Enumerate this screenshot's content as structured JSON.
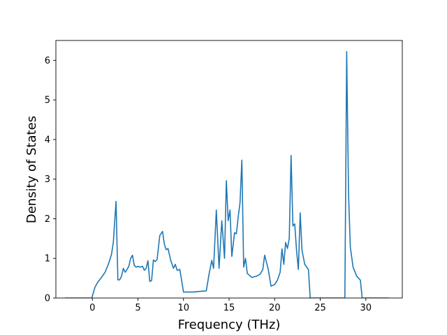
{
  "chart_data": {
    "type": "line",
    "title": "",
    "xlabel": "Frequency (THz)",
    "ylabel": "Density of States",
    "xlim": [
      -4.0,
      34.0
    ],
    "ylim": [
      0,
      6.5
    ],
    "xticks": [
      0,
      5,
      10,
      15,
      20,
      25,
      30
    ],
    "yticks": [
      0,
      1,
      2,
      3,
      4,
      5,
      6
    ],
    "grid": false,
    "legend": "none",
    "series": [
      {
        "color": "#1f77b4",
        "x": [
          -3.0,
          -0.05,
          0.0,
          0.3,
          0.6,
          1.0,
          1.4,
          1.8,
          2.1,
          2.3,
          2.5,
          2.6,
          2.8,
          3.0,
          3.2,
          3.4,
          3.6,
          3.8,
          4.0,
          4.2,
          4.4,
          4.6,
          4.8,
          5.0,
          5.2,
          5.5,
          5.7,
          5.9,
          6.1,
          6.3,
          6.5,
          6.7,
          6.9,
          7.1,
          7.4,
          7.7,
          7.9,
          8.1,
          8.3,
          8.6,
          8.9,
          9.1,
          9.3,
          9.6,
          10.0,
          11.0,
          12.0,
          12.5,
          12.8,
          13.1,
          13.3,
          13.6,
          13.9,
          14.2,
          14.5,
          14.7,
          14.9,
          15.1,
          15.3,
          15.6,
          15.8,
          16.0,
          16.2,
          16.4,
          16.6,
          16.8,
          17.0,
          17.5,
          18.0,
          18.4,
          18.7,
          18.9,
          19.3,
          19.6,
          20.0,
          20.3,
          20.6,
          20.8,
          21.0,
          21.2,
          21.4,
          21.6,
          21.8,
          22.0,
          22.2,
          22.4,
          22.6,
          22.8,
          23.0,
          23.3,
          23.7,
          23.9,
          24.5,
          27.7,
          27.9,
          28.1,
          28.3,
          28.6,
          29.0,
          29.4,
          29.6,
          29.9,
          32.5
        ],
        "y": [
          0.0,
          0.0,
          0.05,
          0.28,
          0.4,
          0.52,
          0.65,
          0.88,
          1.1,
          1.4,
          2.1,
          2.44,
          0.46,
          0.46,
          0.55,
          0.75,
          0.65,
          0.72,
          0.8,
          1.0,
          1.08,
          0.82,
          0.78,
          0.8,
          0.78,
          0.8,
          0.7,
          0.75,
          0.94,
          0.42,
          0.44,
          0.96,
          0.92,
          0.97,
          1.58,
          1.68,
          1.36,
          1.22,
          1.25,
          0.95,
          0.75,
          0.85,
          0.7,
          0.72,
          0.15,
          0.15,
          0.17,
          0.18,
          0.6,
          0.95,
          0.75,
          2.22,
          0.75,
          1.95,
          1.0,
          2.96,
          1.95,
          2.22,
          1.05,
          1.65,
          1.62,
          2.05,
          2.4,
          3.48,
          0.78,
          1.0,
          0.62,
          0.52,
          0.55,
          0.6,
          0.72,
          1.08,
          0.72,
          0.3,
          0.34,
          0.45,
          0.65,
          1.24,
          0.85,
          1.4,
          1.25,
          1.5,
          3.6,
          1.82,
          1.87,
          1.2,
          0.72,
          2.15,
          1.2,
          0.85,
          0.72,
          0.0,
          0.0,
          0.0,
          6.22,
          2.65,
          1.28,
          0.78,
          0.55,
          0.45,
          0.0,
          0.0,
          0.0
        ]
      }
    ]
  }
}
